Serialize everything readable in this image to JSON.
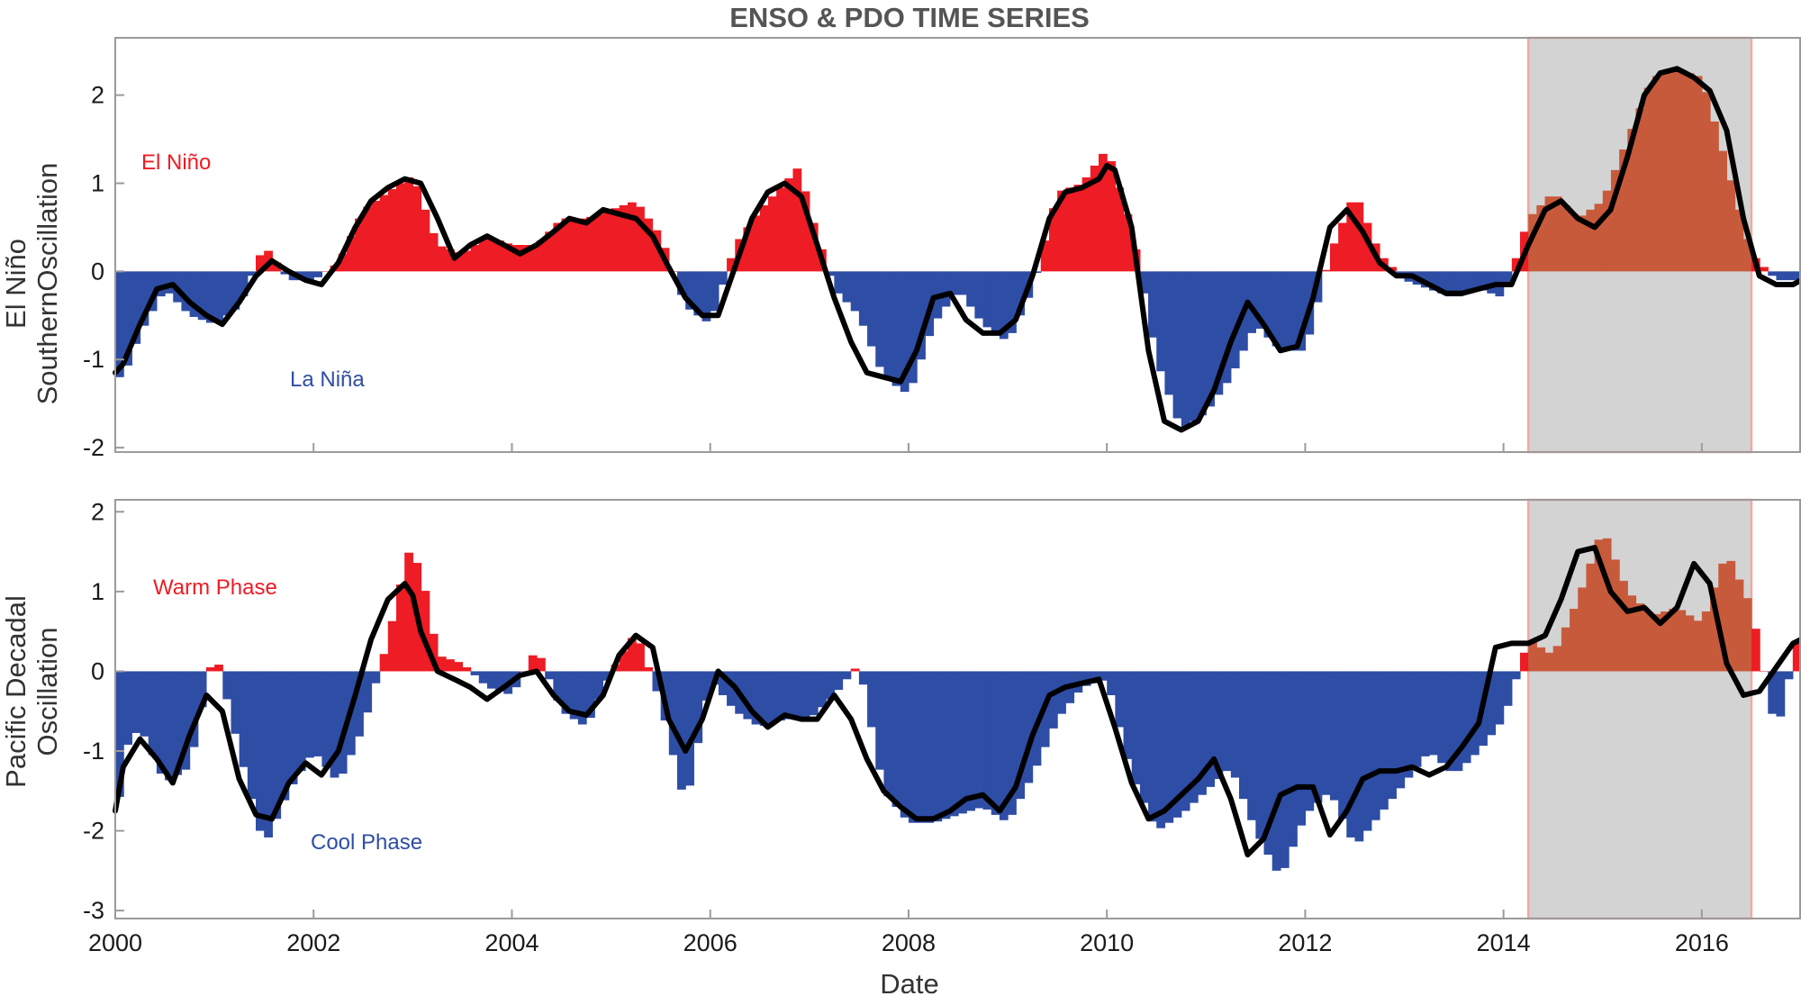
{
  "chart_data": [
    {
      "type": "bar",
      "title": "ENSO & PDO TIME SERIES",
      "ylabel_line1": "El Niño",
      "ylabel_line2": "SouthernOscillation",
      "ylim": [
        -2.05,
        2.65
      ],
      "yticks": [
        2,
        1,
        0,
        -1,
        -2
      ],
      "xlim": [
        2000,
        2017
      ],
      "annotations": {
        "positive": "El Niño",
        "negative": "La Niña"
      },
      "colors": {
        "positive": "#ee1c24",
        "negative": "#2e4da5",
        "highlighted": "#c85a3c",
        "smooth_line": "#000000"
      },
      "highlight_period": {
        "start": 2014.25,
        "end": 2016.5,
        "fill": "#d3d3d3",
        "edge": "#f4a8a0"
      },
      "grid": false,
      "bar_interval": "monthly",
      "monthly_anchors": {
        "x": [
          2000.0,
          2000.08,
          2000.25,
          2000.5,
          2000.75,
          2001.0,
          2001.25,
          2001.5,
          2001.75,
          2002.0,
          2002.25,
          2002.5,
          2002.75,
          2003.0,
          2003.25,
          2003.5,
          2003.75,
          2004.0,
          2004.25,
          2004.5,
          2004.75,
          2005.0,
          2005.25,
          2005.5,
          2005.75,
          2006.0,
          2006.25,
          2006.5,
          2006.75,
          2006.9,
          2007.0,
          2007.25,
          2007.5,
          2007.75,
          2008.0,
          2008.25,
          2008.5,
          2008.75,
          2009.0,
          2009.25,
          2009.5,
          2009.75,
          2010.0,
          2010.25,
          2010.5,
          2010.75,
          2011.0,
          2011.25,
          2011.5,
          2011.75,
          2012.0,
          2012.25,
          2012.5,
          2012.75,
          2013.0,
          2013.25,
          2013.5,
          2013.75,
          2014.0,
          2014.25,
          2014.5,
          2014.75,
          2015.0,
          2015.25,
          2015.5,
          2015.75,
          2016.0,
          2016.25,
          2016.5,
          2016.75,
          2017.0
        ],
        "values": [
          -1.2,
          -1.2,
          -0.7,
          -0.2,
          -0.5,
          -0.6,
          -0.4,
          0.3,
          -0.1,
          -0.1,
          0.1,
          0.7,
          0.9,
          1.1,
          0.3,
          0.2,
          0.4,
          0.3,
          0.3,
          0.6,
          0.6,
          0.7,
          0.8,
          0.4,
          -0.4,
          -0.6,
          0.3,
          0.7,
          1.0,
          1.2,
          0.7,
          -0.2,
          -0.5,
          -1.2,
          -1.4,
          -0.6,
          -0.2,
          -0.6,
          -0.8,
          -0.2,
          0.9,
          1.0,
          1.4,
          0.5,
          -1.0,
          -1.8,
          -1.6,
          -1.2,
          -0.6,
          -0.9,
          -0.9,
          0.2,
          0.9,
          0.2,
          -0.1,
          -0.2,
          -0.3,
          -0.2,
          -0.3,
          0.6,
          0.9,
          0.6,
          0.8,
          1.5,
          2.2,
          2.3,
          2.2,
          1.2,
          0.2,
          -0.1,
          -0.1
        ]
      },
      "smooth_line": {
        "x": [
          2000.0,
          2000.08,
          2000.25,
          2000.42,
          2000.58,
          2000.75,
          2000.92,
          2001.08,
          2001.25,
          2001.42,
          2001.58,
          2001.75,
          2001.92,
          2002.08,
          2002.25,
          2002.42,
          2002.58,
          2002.75,
          2002.92,
          2003.08,
          2003.25,
          2003.42,
          2003.58,
          2003.75,
          2003.92,
          2004.08,
          2004.25,
          2004.42,
          2004.58,
          2004.75,
          2004.92,
          2005.08,
          2005.25,
          2005.42,
          2005.58,
          2005.75,
          2005.92,
          2006.08,
          2006.25,
          2006.42,
          2006.58,
          2006.75,
          2006.92,
          2007.08,
          2007.25,
          2007.42,
          2007.58,
          2007.75,
          2007.92,
          2008.08,
          2008.25,
          2008.42,
          2008.58,
          2008.75,
          2008.92,
          2009.08,
          2009.25,
          2009.42,
          2009.58,
          2009.75,
          2009.92,
          2010.0,
          2010.08,
          2010.25,
          2010.42,
          2010.58,
          2010.75,
          2010.92,
          2011.08,
          2011.25,
          2011.42,
          2011.58,
          2011.75,
          2011.92,
          2012.08,
          2012.25,
          2012.42,
          2012.58,
          2012.75,
          2012.92,
          2013.08,
          2013.25,
          2013.42,
          2013.58,
          2013.75,
          2013.92,
          2014.08,
          2014.25,
          2014.42,
          2014.58,
          2014.75,
          2014.92,
          2015.08,
          2015.25,
          2015.42,
          2015.58,
          2015.75,
          2015.92,
          2016.08,
          2016.25,
          2016.42,
          2016.58,
          2016.75,
          2016.92,
          2017.0
        ],
        "values": [
          -1.15,
          -1.05,
          -0.6,
          -0.2,
          -0.15,
          -0.35,
          -0.5,
          -0.6,
          -0.35,
          -0.05,
          0.12,
          0.0,
          -0.1,
          -0.15,
          0.1,
          0.5,
          0.8,
          0.95,
          1.05,
          1.0,
          0.6,
          0.15,
          0.3,
          0.4,
          0.3,
          0.2,
          0.3,
          0.45,
          0.6,
          0.55,
          0.7,
          0.65,
          0.6,
          0.4,
          0.05,
          -0.3,
          -0.5,
          -0.5,
          0.05,
          0.6,
          0.9,
          1.0,
          0.85,
          0.3,
          -0.3,
          -0.8,
          -1.15,
          -1.2,
          -1.25,
          -0.9,
          -0.3,
          -0.25,
          -0.55,
          -0.7,
          -0.7,
          -0.55,
          -0.05,
          0.6,
          0.9,
          0.95,
          1.05,
          1.2,
          1.15,
          0.5,
          -0.9,
          -1.7,
          -1.8,
          -1.7,
          -1.35,
          -0.8,
          -0.35,
          -0.6,
          -0.9,
          -0.85,
          -0.3,
          0.5,
          0.7,
          0.45,
          0.1,
          -0.05,
          -0.05,
          -0.15,
          -0.25,
          -0.25,
          -0.2,
          -0.15,
          -0.15,
          0.3,
          0.7,
          0.8,
          0.6,
          0.5,
          0.7,
          1.3,
          2.0,
          2.25,
          2.3,
          2.2,
          2.05,
          1.6,
          0.6,
          -0.05,
          -0.15,
          -0.15,
          -0.1
        ]
      }
    },
    {
      "type": "bar",
      "ylabel_line1": "Pacific Decadal",
      "ylabel_line2": "Oscillation",
      "xlabel": "Date",
      "ylim": [
        -3.1,
        2.15
      ],
      "yticks": [
        2,
        1,
        0,
        -1,
        -2,
        -3
      ],
      "xlim": [
        2000,
        2017
      ],
      "xticks": [
        2000,
        2002,
        2004,
        2006,
        2008,
        2010,
        2012,
        2014,
        2016
      ],
      "annotations": {
        "positive": "Warm Phase",
        "negative": "Cool Phase"
      },
      "colors": {
        "positive": "#ee1c24",
        "negative": "#2e4da5",
        "highlighted": "#c85a3c",
        "smooth_line": "#000000"
      },
      "highlight_period": {
        "start": 2014.25,
        "end": 2016.5,
        "fill": "#d3d3d3",
        "edge": "#f4a8a0"
      },
      "grid": false,
      "bar_interval": "monthly",
      "monthly_anchors": {
        "x": [
          2000.0,
          2000.08,
          2000.25,
          2000.5,
          2000.75,
          2001.0,
          2001.25,
          2001.5,
          2001.75,
          2002.0,
          2002.25,
          2002.5,
          2002.75,
          2002.95,
          2003.08,
          2003.25,
          2003.5,
          2003.75,
          2004.0,
          2004.25,
          2004.5,
          2004.75,
          2005.0,
          2005.25,
          2005.5,
          2005.75,
          2006.0,
          2006.25,
          2006.5,
          2006.75,
          2007.0,
          2007.25,
          2007.5,
          2007.75,
          2008.0,
          2008.25,
          2008.5,
          2008.75,
          2009.0,
          2009.25,
          2009.5,
          2009.75,
          2010.0,
          2010.25,
          2010.5,
          2010.75,
          2011.0,
          2011.25,
          2011.5,
          2011.75,
          2012.0,
          2012.25,
          2012.5,
          2012.75,
          2013.0,
          2013.25,
          2013.5,
          2013.75,
          2014.0,
          2014.25,
          2014.5,
          2014.75,
          2015.0,
          2015.25,
          2015.5,
          2015.75,
          2016.0,
          2016.25,
          2016.5,
          2016.75,
          2017.0
        ],
        "values": [
          -2.2,
          -1.0,
          -0.7,
          -1.4,
          -1.2,
          0.3,
          -1.0,
          -2.2,
          -1.5,
          -1.0,
          -1.4,
          -0.7,
          0.4,
          1.5,
          1.3,
          0.2,
          0.1,
          -0.2,
          -0.3,
          0.3,
          -0.5,
          -0.7,
          0.0,
          0.5,
          -0.4,
          -1.7,
          -0.1,
          -0.5,
          -0.7,
          -0.6,
          -0.6,
          -0.3,
          0.1,
          -1.5,
          -1.9,
          -1.9,
          -1.8,
          -1.7,
          -1.9,
          -1.3,
          -0.6,
          -0.2,
          -0.1,
          -1.3,
          -2.0,
          -1.8,
          -1.5,
          -1.2,
          -2.0,
          -2.6,
          -1.8,
          -1.5,
          -2.2,
          -1.8,
          -1.4,
          -1.0,
          -1.3,
          -1.0,
          -0.6,
          0.4,
          0.2,
          0.9,
          1.8,
          1.0,
          0.7,
          0.8,
          0.6,
          1.5,
          0.8,
          -0.8,
          0.6
        ]
      },
      "smooth_line": {
        "x": [
          2000.0,
          2000.08,
          2000.25,
          2000.42,
          2000.58,
          2000.75,
          2000.92,
          2001.08,
          2001.25,
          2001.42,
          2001.58,
          2001.75,
          2001.92,
          2002.08,
          2002.25,
          2002.42,
          2002.58,
          2002.75,
          2002.92,
          2003.0,
          2003.08,
          2003.25,
          2003.42,
          2003.58,
          2003.75,
          2003.92,
          2004.08,
          2004.25,
          2004.42,
          2004.58,
          2004.75,
          2004.92,
          2005.08,
          2005.25,
          2005.42,
          2005.58,
          2005.75,
          2005.92,
          2006.08,
          2006.25,
          2006.42,
          2006.58,
          2006.75,
          2006.92,
          2007.08,
          2007.25,
          2007.42,
          2007.58,
          2007.75,
          2007.92,
          2008.08,
          2008.25,
          2008.42,
          2008.58,
          2008.75,
          2008.92,
          2009.08,
          2009.25,
          2009.42,
          2009.58,
          2009.75,
          2009.92,
          2010.08,
          2010.25,
          2010.42,
          2010.58,
          2010.75,
          2010.92,
          2011.08,
          2011.25,
          2011.42,
          2011.58,
          2011.75,
          2011.92,
          2012.08,
          2012.25,
          2012.42,
          2012.58,
          2012.75,
          2012.92,
          2013.08,
          2013.25,
          2013.42,
          2013.58,
          2013.75,
          2013.92,
          2014.08,
          2014.25,
          2014.42,
          2014.58,
          2014.75,
          2014.92,
          2015.08,
          2015.25,
          2015.42,
          2015.58,
          2015.75,
          2015.92,
          2016.08,
          2016.25,
          2016.42,
          2016.58,
          2016.75,
          2016.92,
          2017.0
        ],
        "values": [
          -1.75,
          -1.2,
          -0.85,
          -1.1,
          -1.4,
          -0.8,
          -0.3,
          -0.5,
          -1.35,
          -1.8,
          -1.85,
          -1.4,
          -1.15,
          -1.3,
          -1.0,
          -0.3,
          0.4,
          0.9,
          1.1,
          0.95,
          0.5,
          0.0,
          -0.1,
          -0.2,
          -0.35,
          -0.2,
          -0.05,
          0.0,
          -0.3,
          -0.5,
          -0.55,
          -0.3,
          0.2,
          0.45,
          0.3,
          -0.6,
          -1.0,
          -0.6,
          0.0,
          -0.2,
          -0.5,
          -0.7,
          -0.55,
          -0.6,
          -0.6,
          -0.3,
          -0.6,
          -1.1,
          -1.5,
          -1.7,
          -1.85,
          -1.85,
          -1.75,
          -1.6,
          -1.55,
          -1.75,
          -1.45,
          -0.8,
          -0.3,
          -0.2,
          -0.15,
          -0.1,
          -0.7,
          -1.4,
          -1.85,
          -1.75,
          -1.55,
          -1.35,
          -1.1,
          -1.6,
          -2.3,
          -2.1,
          -1.55,
          -1.45,
          -1.45,
          -2.05,
          -1.75,
          -1.35,
          -1.25,
          -1.25,
          -1.2,
          -1.3,
          -1.2,
          -0.95,
          -0.65,
          0.3,
          0.35,
          0.35,
          0.45,
          0.9,
          1.5,
          1.55,
          1.0,
          0.75,
          0.8,
          0.6,
          0.8,
          1.35,
          1.1,
          0.1,
          -0.3,
          -0.25,
          0.05,
          0.35,
          0.4
        ]
      }
    }
  ]
}
